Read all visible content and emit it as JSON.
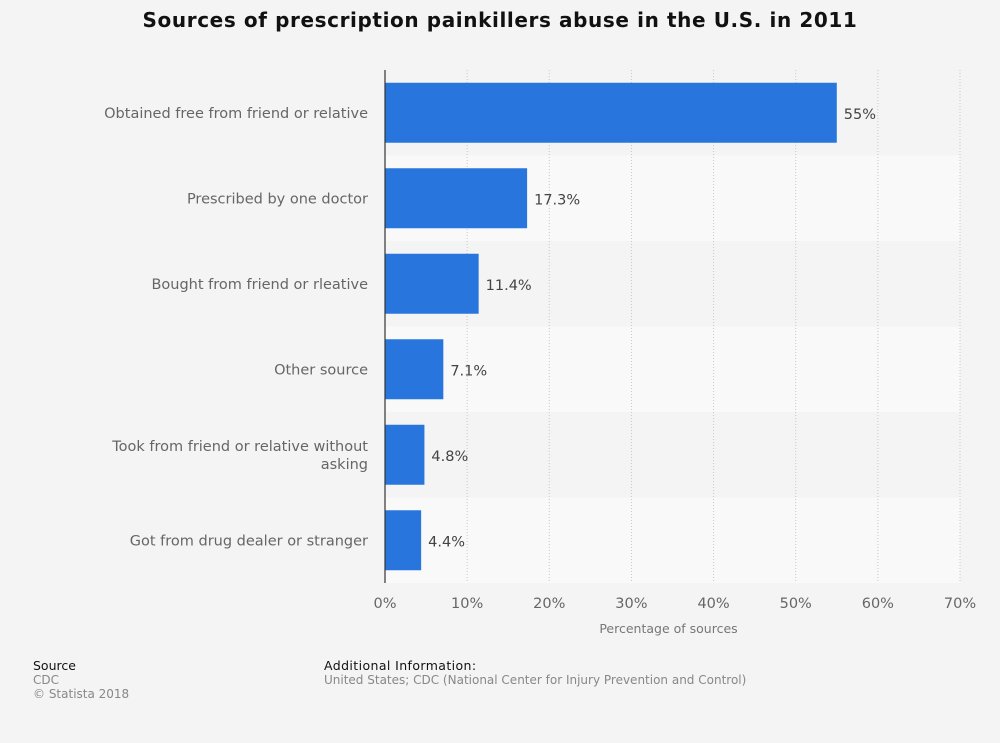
{
  "chart_data": {
    "type": "bar",
    "orientation": "horizontal",
    "title": "Sources of prescription painkillers abuse in the U.S. in 2011",
    "categories": [
      "Obtained free from friend or relative",
      "Prescribed by one doctor",
      "Bought from friend or rleative",
      "Other source",
      "Took from friend or relative without asking",
      "Got from drug dealer or stranger"
    ],
    "category_lines": [
      [
        "Obtained free from friend or relative"
      ],
      [
        "Prescribed by one doctor"
      ],
      [
        "Bought from friend or rleative"
      ],
      [
        "Other source"
      ],
      [
        "Took from friend or relative without",
        "asking"
      ],
      [
        "Got from drug dealer or stranger"
      ]
    ],
    "values": [
      55,
      17.3,
      11.4,
      7.1,
      4.8,
      4.4
    ],
    "value_labels": [
      "55%",
      "17.3%",
      "11.4%",
      "7.1%",
      "4.8%",
      "4.4%"
    ],
    "xlim": [
      0,
      70
    ],
    "xticks": [
      0,
      10,
      20,
      30,
      40,
      50,
      60,
      70
    ],
    "xtick_labels": [
      "0%",
      "10%",
      "20%",
      "30%",
      "40%",
      "50%",
      "60%",
      "70%"
    ],
    "xlabel": "Percentage of sources",
    "ylabel": "",
    "bar_color": "#2876dd",
    "grid": true
  },
  "footer": {
    "source_heading": "Source",
    "source_lines": [
      "CDC",
      "© Statista 2018"
    ],
    "additional_heading": "Additional Information:",
    "additional_text": "United States; CDC (National Center for Injury Prevention and Control)"
  }
}
